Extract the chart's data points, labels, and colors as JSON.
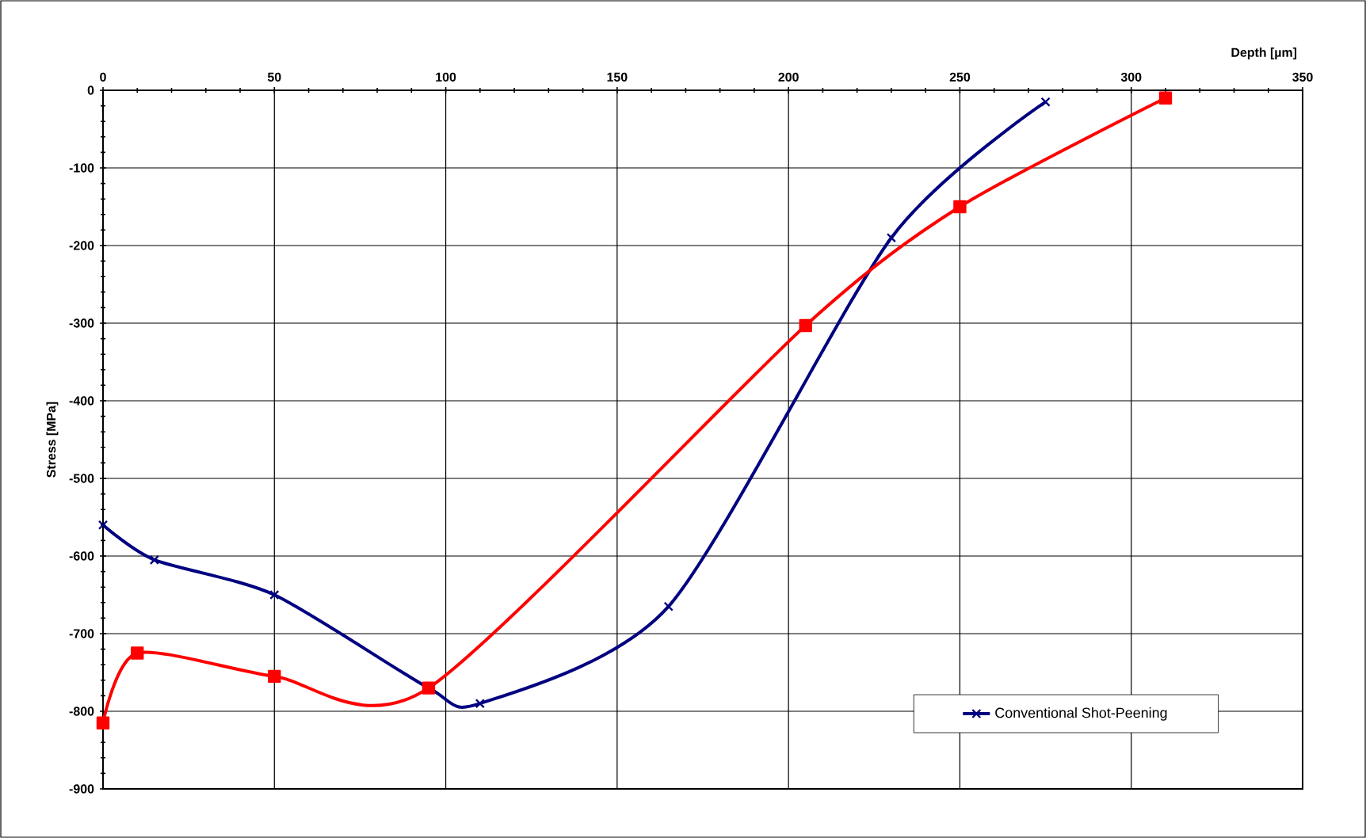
{
  "chart_data": {
    "type": "line",
    "xlabel": "Depth [µm]",
    "ylabel": "Stress [MPa]",
    "xlim": [
      0,
      350
    ],
    "xticks": [
      0,
      50,
      100,
      150,
      200,
      250,
      300,
      350
    ],
    "ylim": [
      -900,
      0
    ],
    "yticks": [
      0,
      -100,
      -200,
      -300,
      -400,
      -500,
      -600,
      -700,
      -800,
      -900
    ],
    "grid": true,
    "legend": "bottom right",
    "series": [
      {
        "name": "Conventional Shot-Peening",
        "color": "#000080",
        "marker": "cross",
        "x": [
          0,
          15,
          50,
          95,
          110,
          165,
          230,
          275
        ],
        "values": [
          -560,
          -605,
          -650,
          -770,
          -790,
          -665,
          -190,
          -15
        ]
      },
      {
        "color": "#ff0000",
        "marker": "square",
        "x": [
          0,
          10,
          50,
          95,
          205,
          250,
          310
        ],
        "values": [
          -815,
          -725,
          -755,
          -770,
          -303,
          -150,
          -10
        ]
      }
    ]
  }
}
